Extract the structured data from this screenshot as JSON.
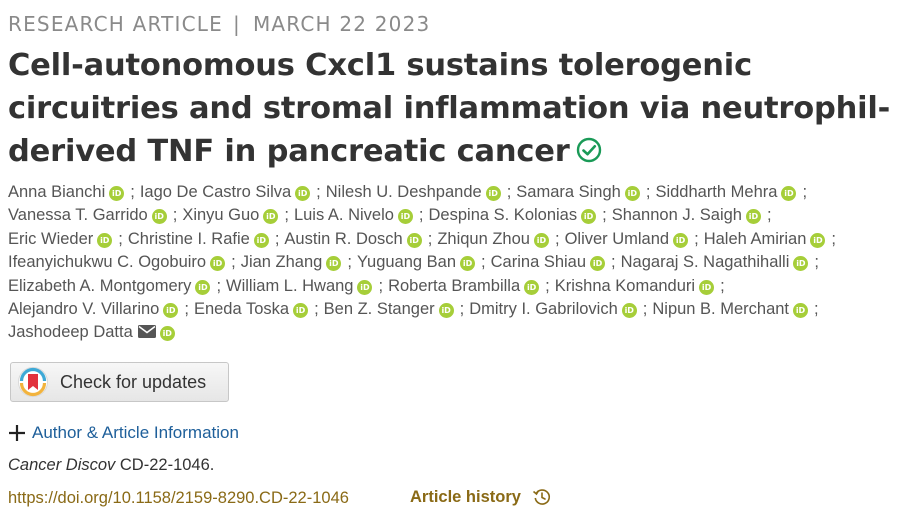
{
  "header": {
    "article_type": "RESEARCH ARTICLE",
    "separator": "|",
    "date": "MARCH 22 2023"
  },
  "title": {
    "line1": "Cell-autonomous Cxcl1 sustains tolerogenic",
    "line2": "circuitries and stromal inflammation via neutrophil-",
    "line3": "derived TNF in pancreatic cancer",
    "verified_icon": "check-circle-icon",
    "verified_color": "#1a9a57"
  },
  "orcid": {
    "label": "iD",
    "color": "#a6ce39"
  },
  "authors": [
    [
      "Anna Bianchi",
      "Iago De Castro Silva",
      "Nilesh U. Deshpande",
      "Samara Singh",
      "Siddharth Mehra"
    ],
    [
      "Vanessa T. Garrido",
      "Xinyu Guo",
      "Luis A. Nivelo",
      "Despina S. Kolonias",
      "Shannon J. Saigh"
    ],
    [
      "Eric Wieder",
      "Christine I. Rafie",
      "Austin R. Dosch",
      "Zhiqun Zhou",
      "Oliver Umland",
      "Haleh Amirian"
    ],
    [
      "Ifeanyichukwu C. Ogobuiro",
      "Jian Zhang",
      "Yuguang Ban",
      "Carina Shiau",
      "Nagaraj S. Nagathihalli"
    ],
    [
      "Elizabeth A. Montgomery",
      "William L. Hwang",
      "Roberta Brambilla",
      "Krishna Komanduri"
    ],
    [
      "Alejandro V. Villarino",
      "Eneda Toska",
      "Ben Z. Stanger",
      "Dmitry I. Gabrilovich",
      "Nipun B. Merchant"
    ],
    [
      "Jashodeep Datta"
    ]
  ],
  "separator_char": ";",
  "check_updates": {
    "label": "Check for updates"
  },
  "author_info": {
    "label": "Author & Article Information",
    "icon": "plus-icon"
  },
  "citation": {
    "journal": "Cancer Discov",
    "id": "CD-22-1046."
  },
  "doi": {
    "text": "https://doi.org/10.1158/2159-8290.CD-22-1046"
  },
  "article_history": {
    "label": "Article history",
    "icon": "history-clock-icon"
  },
  "colors": {
    "link": "#1e5f9a",
    "gold": "#8a6a16",
    "kicker": "#8a8a8a"
  }
}
